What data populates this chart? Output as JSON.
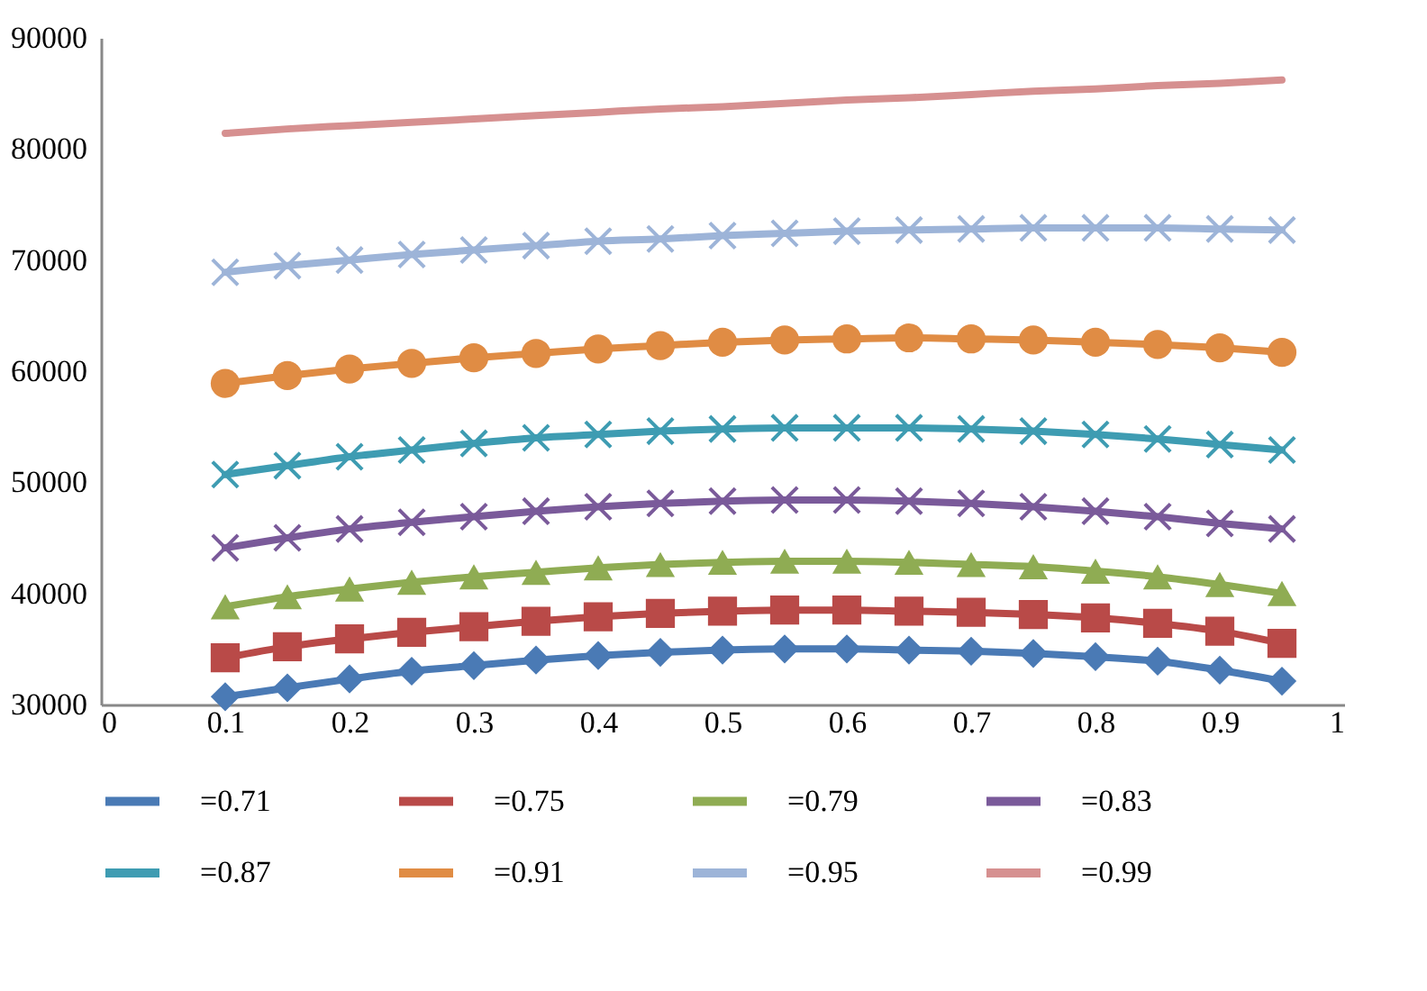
{
  "chart_data": {
    "type": "line",
    "x": [
      0.1,
      0.15,
      0.2,
      0.25,
      0.3,
      0.35,
      0.4,
      0.45,
      0.5,
      0.55,
      0.6,
      0.65,
      0.7,
      0.75,
      0.8,
      0.85,
      0.9,
      0.95
    ],
    "series": [
      {
        "name": "=0.71",
        "color": "#4a7ab5",
        "marker": "diamond",
        "values": [
          30700,
          31500,
          32300,
          33000,
          33500,
          34000,
          34400,
          34700,
          34900,
          35000,
          35000,
          34900,
          34800,
          34600,
          34300,
          33900,
          33100,
          32100
        ]
      },
      {
        "name": "=0.75",
        "color": "#b94a48",
        "marker": "square",
        "values": [
          34200,
          35200,
          35900,
          36500,
          37000,
          37500,
          37900,
          38200,
          38400,
          38500,
          38500,
          38400,
          38300,
          38100,
          37800,
          37300,
          36600,
          35500
        ]
      },
      {
        "name": "=0.79",
        "color": "#8fac53",
        "marker": "triangle",
        "values": [
          38800,
          39700,
          40400,
          41000,
          41500,
          41900,
          42300,
          42600,
          42800,
          42900,
          42900,
          42800,
          42600,
          42400,
          42000,
          41500,
          40800,
          40000
        ]
      },
      {
        "name": "=0.83",
        "color": "#7a5a9a",
        "marker": "cross",
        "values": [
          44100,
          45000,
          45800,
          46400,
          46900,
          47400,
          47800,
          48100,
          48300,
          48400,
          48400,
          48300,
          48100,
          47800,
          47400,
          46900,
          46300,
          45800
        ]
      },
      {
        "name": "=0.87",
        "color": "#3e9cb2",
        "marker": "cross",
        "values": [
          50700,
          51500,
          52300,
          52900,
          53500,
          54000,
          54300,
          54600,
          54800,
          54900,
          54900,
          54900,
          54800,
          54600,
          54300,
          53900,
          53400,
          52900
        ]
      },
      {
        "name": "=0.91",
        "color": "#e08c44",
        "marker": "circle",
        "values": [
          58900,
          59600,
          60200,
          60700,
          61200,
          61600,
          62000,
          62300,
          62600,
          62800,
          62900,
          63000,
          62900,
          62800,
          62600,
          62400,
          62100,
          61700
        ]
      },
      {
        "name": "=0.95",
        "color": "#9db4d8",
        "marker": "cross",
        "values": [
          68900,
          69500,
          70000,
          70500,
          70900,
          71300,
          71700,
          71900,
          72200,
          72400,
          72600,
          72700,
          72800,
          72900,
          72900,
          72900,
          72800,
          72700
        ]
      },
      {
        "name": "=0.99",
        "color": "#d69090",
        "marker": "none",
        "values": [
          81400,
          81800,
          82100,
          82400,
          82700,
          83000,
          83300,
          83600,
          83800,
          84100,
          84400,
          84600,
          84900,
          85200,
          85400,
          85700,
          85900,
          86200
        ]
      }
    ],
    "xlim": [
      0,
      1
    ],
    "xticks": [
      0,
      0.1,
      0.2,
      0.3,
      0.4,
      0.5,
      0.6,
      0.7,
      0.8,
      0.9,
      1
    ],
    "ylim": [
      30000,
      90000
    ],
    "yticks": [
      30000,
      40000,
      50000,
      60000,
      70000,
      80000,
      90000
    ],
    "grid": false,
    "legend": "bottom",
    "line_style": "solid"
  }
}
